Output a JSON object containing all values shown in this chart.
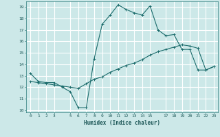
{
  "xlabel": "Humidex (Indice chaleur)",
  "bg_color": "#cce8e8",
  "grid_color": "#ffffff",
  "line_color": "#1a6b6b",
  "xlim": [
    -0.5,
    23.5
  ],
  "ylim": [
    9.8,
    19.5
  ],
  "xtick_positions": [
    0,
    1,
    2,
    3,
    5,
    6,
    7,
    8,
    9,
    10,
    11,
    12,
    13,
    14,
    15,
    17,
    18,
    19,
    20,
    21,
    22,
    23
  ],
  "xtick_labels": [
    "0",
    "1",
    "2",
    "3",
    "5",
    "6",
    "7",
    "8",
    "9",
    "10",
    "11",
    "12",
    "13",
    "14",
    "15",
    "17",
    "18",
    "19",
    "20",
    "21",
    "22",
    "23"
  ],
  "ytick_positions": [
    10,
    11,
    12,
    13,
    14,
    15,
    16,
    17,
    18,
    19
  ],
  "ytick_labels": [
    "10",
    "11",
    "12",
    "13",
    "14",
    "15",
    "16",
    "17",
    "18",
    "19"
  ],
  "curve1_x": [
    0,
    1,
    2,
    3,
    4,
    5,
    6,
    7,
    8,
    9,
    10,
    11,
    12,
    13,
    14,
    15,
    16,
    17,
    18,
    19,
    20,
    21,
    22,
    23
  ],
  "curve1_y": [
    13.2,
    12.5,
    12.4,
    12.4,
    12.0,
    11.6,
    10.2,
    10.2,
    14.5,
    17.5,
    18.3,
    19.2,
    18.8,
    18.5,
    18.3,
    19.1,
    17.0,
    16.5,
    16.6,
    15.3,
    15.3,
    13.5,
    13.5,
    13.8
  ],
  "curve2_x": [
    0,
    1,
    2,
    3,
    4,
    5,
    6,
    7,
    8,
    9,
    10,
    11,
    12,
    13,
    14,
    15,
    16,
    17,
    18,
    19,
    20,
    21,
    22,
    23
  ],
  "curve2_y": [
    12.5,
    12.4,
    12.3,
    12.2,
    12.1,
    12.0,
    11.9,
    12.3,
    12.7,
    12.9,
    13.3,
    13.6,
    13.9,
    14.1,
    14.4,
    14.8,
    15.1,
    15.3,
    15.5,
    15.7,
    15.6,
    15.4,
    13.5,
    13.8
  ]
}
